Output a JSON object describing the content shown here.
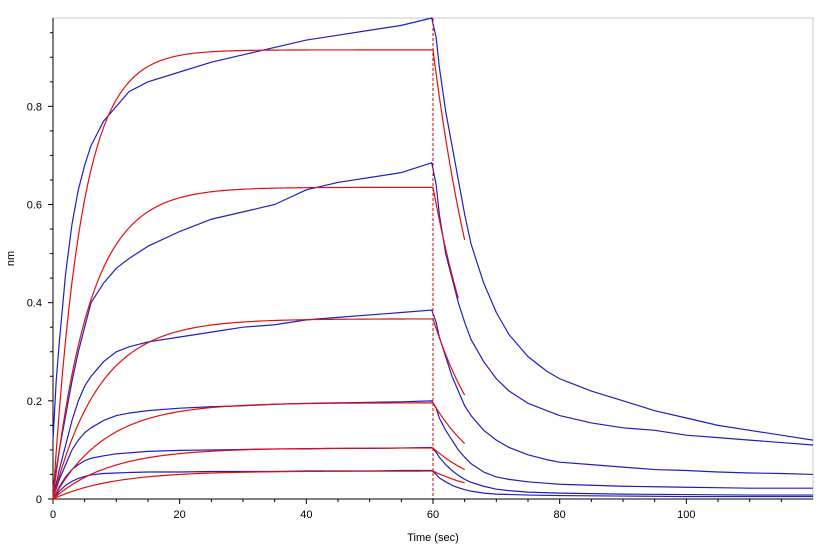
{
  "chart_data": {
    "type": "line",
    "title": "",
    "xlabel": "Time (sec)",
    "ylabel": "nm",
    "xlim": [
      0,
      120
    ],
    "ylim": [
      0,
      0.98
    ],
    "x_ticks": [
      0,
      20,
      40,
      60,
      80,
      100
    ],
    "y_ticks": [
      0,
      0.2,
      0.4,
      0.6,
      0.8
    ],
    "grid": false,
    "legend": "none",
    "marker_line": {
      "x": 60,
      "color": "#cc0000",
      "style": "dashed"
    },
    "colors": {
      "measured": "#1f1fbf",
      "fit": "#dd1111"
    },
    "curves": [
      {
        "kind": "measured",
        "color": "#1f1fbf",
        "points": [
          [
            0,
            0.12
          ],
          [
            0.5,
            0.24
          ],
          [
            1,
            0.32
          ],
          [
            1.5,
            0.39
          ],
          [
            2,
            0.46
          ],
          [
            3,
            0.56
          ],
          [
            4,
            0.63
          ],
          [
            5,
            0.68
          ],
          [
            6,
            0.72
          ],
          [
            8,
            0.77
          ],
          [
            10,
            0.8
          ],
          [
            12,
            0.83
          ],
          [
            15,
            0.85
          ],
          [
            20,
            0.87
          ],
          [
            25,
            0.89
          ],
          [
            30,
            0.905
          ],
          [
            35,
            0.92
          ],
          [
            40,
            0.935
          ],
          [
            45,
            0.945
          ],
          [
            50,
            0.955
          ],
          [
            55,
            0.965
          ],
          [
            59.8,
            0.98
          ],
          [
            60.5,
            0.94
          ],
          [
            61,
            0.88
          ],
          [
            62,
            0.79
          ],
          [
            63,
            0.72
          ],
          [
            64,
            0.65
          ],
          [
            65,
            0.58
          ],
          [
            66,
            0.52
          ],
          [
            68,
            0.44
          ],
          [
            70,
            0.38
          ],
          [
            72,
            0.335
          ],
          [
            75,
            0.29
          ],
          [
            78,
            0.26
          ],
          [
            80,
            0.245
          ],
          [
            85,
            0.22
          ],
          [
            90,
            0.2
          ],
          [
            95,
            0.18
          ],
          [
            100,
            0.165
          ],
          [
            105,
            0.15
          ],
          [
            110,
            0.14
          ],
          [
            115,
            0.13
          ],
          [
            120,
            0.12
          ]
        ]
      },
      {
        "kind": "measured",
        "color": "#1f1fbf",
        "points": [
          [
            0,
            0.02
          ],
          [
            0.5,
            0.06
          ],
          [
            1,
            0.1
          ],
          [
            2,
            0.17
          ],
          [
            3,
            0.24
          ],
          [
            4,
            0.3
          ],
          [
            5,
            0.35
          ],
          [
            6,
            0.4
          ],
          [
            8,
            0.44
          ],
          [
            10,
            0.47
          ],
          [
            12,
            0.49
          ],
          [
            15,
            0.515
          ],
          [
            20,
            0.545
          ],
          [
            25,
            0.57
          ],
          [
            30,
            0.585
          ],
          [
            35,
            0.6
          ],
          [
            40,
            0.63
          ],
          [
            45,
            0.645
          ],
          [
            50,
            0.655
          ],
          [
            55,
            0.665
          ],
          [
            59.8,
            0.685
          ],
          [
            60.5,
            0.64
          ],
          [
            61,
            0.58
          ],
          [
            62,
            0.5
          ],
          [
            63,
            0.45
          ],
          [
            64,
            0.4
          ],
          [
            65,
            0.36
          ],
          [
            66,
            0.325
          ],
          [
            68,
            0.28
          ],
          [
            70,
            0.245
          ],
          [
            72,
            0.22
          ],
          [
            75,
            0.195
          ],
          [
            78,
            0.18
          ],
          [
            80,
            0.17
          ],
          [
            85,
            0.155
          ],
          [
            90,
            0.145
          ],
          [
            95,
            0.14
          ],
          [
            100,
            0.13
          ],
          [
            105,
            0.125
          ],
          [
            110,
            0.12
          ],
          [
            115,
            0.115
          ],
          [
            120,
            0.11
          ]
        ]
      },
      {
        "kind": "measured",
        "color": "#1f1fbf",
        "points": [
          [
            0,
            0.01
          ],
          [
            0.5,
            0.03
          ],
          [
            1,
            0.06
          ],
          [
            2,
            0.11
          ],
          [
            3,
            0.16
          ],
          [
            4,
            0.2
          ],
          [
            5,
            0.23
          ],
          [
            6,
            0.25
          ],
          [
            8,
            0.28
          ],
          [
            10,
            0.3
          ],
          [
            12,
            0.31
          ],
          [
            15,
            0.32
          ],
          [
            20,
            0.33
          ],
          [
            25,
            0.34
          ],
          [
            30,
            0.35
          ],
          [
            35,
            0.355
          ],
          [
            40,
            0.365
          ],
          [
            45,
            0.37
          ],
          [
            50,
            0.375
          ],
          [
            55,
            0.38
          ],
          [
            59.8,
            0.385
          ],
          [
            60.5,
            0.36
          ],
          [
            61,
            0.33
          ],
          [
            62,
            0.29
          ],
          [
            63,
            0.25
          ],
          [
            64,
            0.22
          ],
          [
            65,
            0.19
          ],
          [
            66,
            0.17
          ],
          [
            68,
            0.14
          ],
          [
            70,
            0.12
          ],
          [
            72,
            0.105
          ],
          [
            75,
            0.09
          ],
          [
            78,
            0.08
          ],
          [
            80,
            0.075
          ],
          [
            85,
            0.07
          ],
          [
            90,
            0.065
          ],
          [
            95,
            0.06
          ],
          [
            100,
            0.058
          ],
          [
            105,
            0.055
          ],
          [
            110,
            0.053
          ],
          [
            115,
            0.052
          ],
          [
            120,
            0.05
          ]
        ]
      },
      {
        "kind": "measured",
        "color": "#1f1fbf",
        "points": [
          [
            0,
            0.005
          ],
          [
            0.5,
            0.02
          ],
          [
            1,
            0.04
          ],
          [
            2,
            0.07
          ],
          [
            3,
            0.1
          ],
          [
            4,
            0.12
          ],
          [
            5,
            0.135
          ],
          [
            6,
            0.145
          ],
          [
            8,
            0.16
          ],
          [
            10,
            0.17
          ],
          [
            12,
            0.175
          ],
          [
            15,
            0.18
          ],
          [
            20,
            0.185
          ],
          [
            25,
            0.188
          ],
          [
            30,
            0.19
          ],
          [
            35,
            0.193
          ],
          [
            40,
            0.195
          ],
          [
            45,
            0.196
          ],
          [
            50,
            0.197
          ],
          [
            55,
            0.198
          ],
          [
            59.8,
            0.2
          ],
          [
            60.5,
            0.185
          ],
          [
            61,
            0.165
          ],
          [
            62,
            0.14
          ],
          [
            63,
            0.12
          ],
          [
            64,
            0.1
          ],
          [
            65,
            0.085
          ],
          [
            66,
            0.072
          ],
          [
            68,
            0.055
          ],
          [
            70,
            0.045
          ],
          [
            72,
            0.04
          ],
          [
            75,
            0.035
          ],
          [
            78,
            0.032
          ],
          [
            80,
            0.03
          ],
          [
            85,
            0.028
          ],
          [
            90,
            0.026
          ],
          [
            95,
            0.025
          ],
          [
            100,
            0.024
          ],
          [
            105,
            0.023
          ],
          [
            110,
            0.022
          ],
          [
            115,
            0.022
          ],
          [
            120,
            0.022
          ]
        ]
      },
      {
        "kind": "measured",
        "color": "#1f1fbf",
        "points": [
          [
            0,
            0.003
          ],
          [
            0.5,
            0.012
          ],
          [
            1,
            0.025
          ],
          [
            2,
            0.045
          ],
          [
            3,
            0.06
          ],
          [
            4,
            0.07
          ],
          [
            5,
            0.078
          ],
          [
            6,
            0.083
          ],
          [
            8,
            0.088
          ],
          [
            10,
            0.092
          ],
          [
            12,
            0.094
          ],
          [
            15,
            0.097
          ],
          [
            20,
            0.099
          ],
          [
            25,
            0.1
          ],
          [
            30,
            0.101
          ],
          [
            35,
            0.102
          ],
          [
            40,
            0.102
          ],
          [
            45,
            0.103
          ],
          [
            50,
            0.103
          ],
          [
            55,
            0.104
          ],
          [
            59.8,
            0.105
          ],
          [
            60.5,
            0.095
          ],
          [
            61,
            0.085
          ],
          [
            62,
            0.07
          ],
          [
            63,
            0.058
          ],
          [
            64,
            0.048
          ],
          [
            65,
            0.04
          ],
          [
            66,
            0.034
          ],
          [
            68,
            0.026
          ],
          [
            70,
            0.02
          ],
          [
            72,
            0.017
          ],
          [
            75,
            0.014
          ],
          [
            80,
            0.012
          ],
          [
            90,
            0.01
          ],
          [
            100,
            0.009
          ],
          [
            110,
            0.008
          ],
          [
            120,
            0.008
          ]
        ]
      },
      {
        "kind": "measured",
        "color": "#1f1fbf",
        "points": [
          [
            0,
            0.002
          ],
          [
            0.5,
            0.008
          ],
          [
            1,
            0.016
          ],
          [
            2,
            0.028
          ],
          [
            3,
            0.036
          ],
          [
            4,
            0.042
          ],
          [
            5,
            0.046
          ],
          [
            6,
            0.049
          ],
          [
            8,
            0.052
          ],
          [
            10,
            0.053
          ],
          [
            12,
            0.054
          ],
          [
            15,
            0.055
          ],
          [
            20,
            0.055
          ],
          [
            25,
            0.056
          ],
          [
            30,
            0.056
          ],
          [
            35,
            0.056
          ],
          [
            40,
            0.057
          ],
          [
            45,
            0.057
          ],
          [
            50,
            0.057
          ],
          [
            55,
            0.058
          ],
          [
            59.8,
            0.058
          ],
          [
            60.5,
            0.05
          ],
          [
            61,
            0.043
          ],
          [
            62,
            0.035
          ],
          [
            63,
            0.028
          ],
          [
            64,
            0.023
          ],
          [
            65,
            0.019
          ],
          [
            66,
            0.016
          ],
          [
            68,
            0.012
          ],
          [
            70,
            0.01
          ],
          [
            75,
            0.008
          ],
          [
            80,
            0.007
          ],
          [
            90,
            0.006
          ],
          [
            100,
            0.005
          ],
          [
            110,
            0.005
          ],
          [
            120,
            0.005
          ]
        ]
      },
      {
        "kind": "fit",
        "color": "#dd1111",
        "ka": 0.22,
        "plateau": 0.915,
        "kd": 0.11,
        "t_end": 65
      },
      {
        "kind": "fit",
        "color": "#dd1111",
        "ka": 0.17,
        "plateau": 0.635,
        "kd": 0.11,
        "t_end": 64
      },
      {
        "kind": "fit",
        "color": "#dd1111",
        "ka": 0.135,
        "plateau": 0.367,
        "kd": 0.11,
        "t_end": 65
      },
      {
        "kind": "fit",
        "color": "#dd1111",
        "ka": 0.12,
        "plateau": 0.196,
        "kd": 0.11,
        "t_end": 65
      },
      {
        "kind": "fit",
        "color": "#dd1111",
        "ka": 0.11,
        "plateau": 0.104,
        "kd": 0.11,
        "t_end": 65
      },
      {
        "kind": "fit",
        "color": "#dd1111",
        "ka": 0.105,
        "plateau": 0.057,
        "kd": 0.11,
        "t_end": 65
      }
    ]
  }
}
